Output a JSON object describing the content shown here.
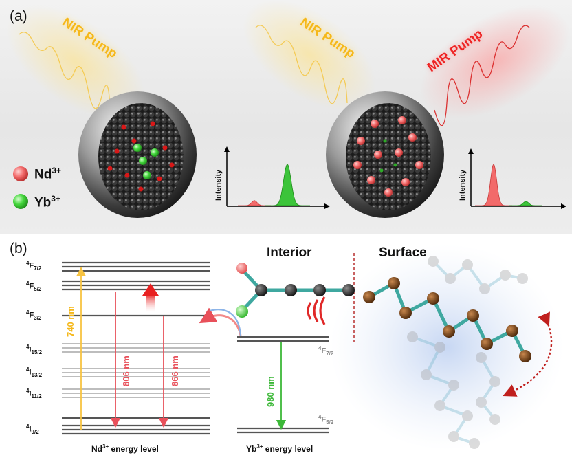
{
  "panel_a": {
    "label": "(a)",
    "left_pump": "NIR Pump",
    "right_nir_pump": "NIR Pump",
    "right_mir_pump": "MIR Pump",
    "legend": [
      {
        "ion": "Nd",
        "charge": "3+",
        "color": "#f26a6a"
      },
      {
        "ion": "Yb",
        "charge": "3+",
        "color": "#44d63c"
      }
    ],
    "left_spectrum": {
      "axis_label": "Intensity",
      "nd_peak_relative": 0.12,
      "yb_peak_relative": 1.0
    },
    "right_spectrum": {
      "axis_label": "Intensity",
      "nd_peak_relative": 1.0,
      "yb_peak_relative": 0.1
    }
  },
  "panel_b": {
    "label": "(b)",
    "nd_levels": [
      {
        "letter": "F",
        "mult": "4",
        "j": "7/2"
      },
      {
        "letter": "F",
        "mult": "4",
        "j": "5/2"
      },
      {
        "letter": "F",
        "mult": "4",
        "j": "3/2"
      },
      {
        "letter": "I",
        "mult": "4",
        "j": "15/2"
      },
      {
        "letter": "I",
        "mult": "4",
        "j": "13/2"
      },
      {
        "letter": "I",
        "mult": "4",
        "j": "11/2"
      },
      {
        "letter": "I",
        "mult": "4",
        "j": "9/2"
      }
    ],
    "yb_levels": [
      {
        "letter": "F",
        "mult": "4",
        "j": "7/2"
      },
      {
        "letter": "F",
        "mult": "4",
        "j": "5/2"
      }
    ],
    "transitions": {
      "pump": "740 nm",
      "emission_1": "806 nm",
      "emission_2": "866 nm",
      "yb_emission": "980 nm"
    },
    "nd_caption_ion": "Nd",
    "nd_caption_charge": "3+",
    "nd_caption_suffix": " energy level",
    "yb_caption_ion": "Yb",
    "yb_caption_charge": "3+",
    "yb_caption_suffix": " energy level",
    "interior_label": "Interior",
    "surface_label": "Surface"
  },
  "colors": {
    "nd": "#f26a6a",
    "yb": "#44d63c",
    "pump_nir": "#f5b81b",
    "pump_mir": "#ee2424",
    "arrow_740": "#f7c341",
    "arrow_red": "#e8505a",
    "arrow_green": "#3cb838",
    "ligand_bond": "#3fa8a0",
    "surface_atom": "#6b3a12"
  }
}
